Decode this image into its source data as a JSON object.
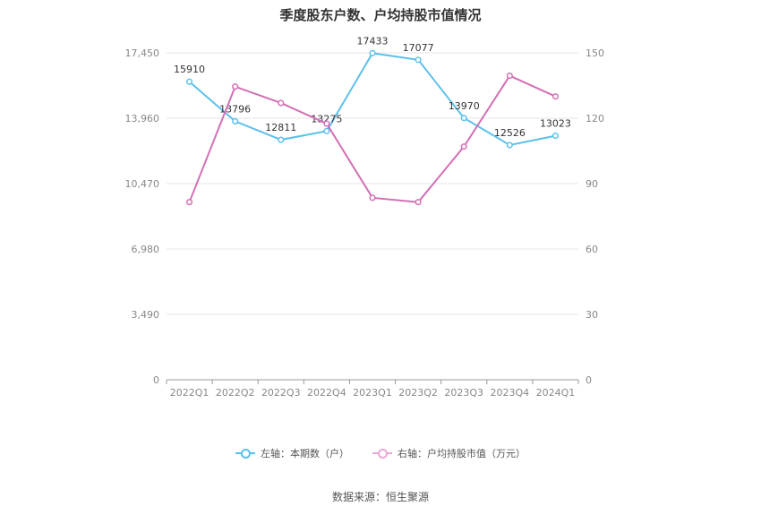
{
  "chart_data": {
    "type": "line",
    "title": "季度股东户数、户均持股市值情况",
    "categories": [
      "2022Q1",
      "2022Q2",
      "2022Q3",
      "2022Q4",
      "2023Q1",
      "2023Q2",
      "2023Q3",
      "2023Q4",
      "2024Q1"
    ],
    "left_axis": {
      "min": 0,
      "max": 17450,
      "ticks": [
        0,
        3490,
        6980,
        10470,
        13960,
        17450
      ],
      "tick_labels": [
        "0",
        "3,490",
        "6,980",
        "10,470",
        "13,960",
        "17,450"
      ]
    },
    "right_axis": {
      "min": 0,
      "max": 150,
      "ticks": [
        0,
        30,
        60,
        90,
        120,
        150
      ],
      "tick_labels": [
        "0",
        "30",
        "60",
        "90",
        "120",
        "150"
      ]
    },
    "series": [
      {
        "name": "左轴：本期数（户）",
        "axis": "left",
        "color": "#5bc0eb",
        "values": [
          15910,
          13796,
          12811,
          13275,
          17433,
          17077,
          13970,
          12526,
          13023
        ],
        "labels": [
          "15910",
          "13796",
          "12811",
          "13275",
          "17433",
          "17077",
          "13970",
          "12526",
          "13023"
        ]
      },
      {
        "name": "右轴：户均持股市值（万元）",
        "axis": "right",
        "color": "#d36fb5",
        "values": [
          81.5,
          134.5,
          127,
          117.5,
          83.5,
          81.5,
          107,
          139.5,
          130
        ]
      }
    ],
    "grid": true,
    "legend_position": "bottom"
  },
  "legend": [
    {
      "label": "左轴：本期数（户）",
      "color": "#5bc0eb"
    },
    {
      "label": "右轴：户均持股市值（万元）",
      "color": "#e8a9d6"
    }
  ],
  "source": "数据来源：恒生聚源"
}
